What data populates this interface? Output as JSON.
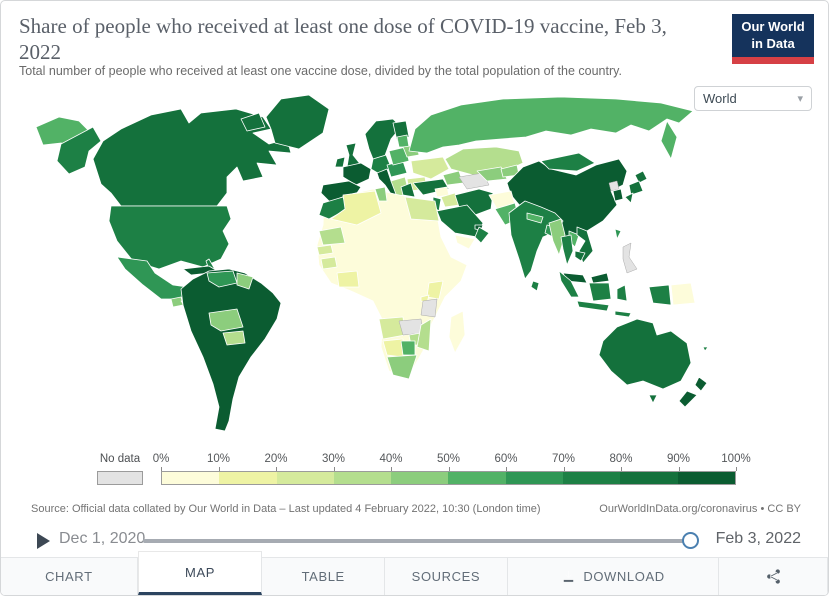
{
  "header": {
    "title": "Share of people who received at least one dose of COVID-19 vaccine, Feb 3, 2022",
    "subtitle": "Total number of people who received at least one vaccine dose, divided by the total population of the country.",
    "logo": {
      "line1": "Our World",
      "line2": "in Data",
      "bg_color": "#15335c",
      "accent_color": "#d64045"
    }
  },
  "controls": {
    "region_selector": {
      "value": "World"
    }
  },
  "map": {
    "type": "choropleth",
    "no_data": {
      "label": "No data",
      "color": "#e3e3e3"
    },
    "legend": {
      "tick_labels": [
        "0%",
        "10%",
        "20%",
        "30%",
        "40%",
        "50%",
        "60%",
        "70%",
        "80%",
        "90%",
        "100%"
      ],
      "bucket_colors": [
        "#fdfcda",
        "#eef3a4",
        "#d5ea9c",
        "#b4de8e",
        "#8ccd7d",
        "#52b266",
        "#2f9655",
        "#1d8045",
        "#14713c",
        "#0b5c31"
      ]
    },
    "regions": [
      {
        "id": "russia-west-wrap",
        "bucket": "50-60%",
        "color": "#52b266"
      },
      {
        "id": "alaska",
        "bucket": "70-80%",
        "color": "#1d8045"
      },
      {
        "id": "canada",
        "bucket": "80-90%",
        "color": "#14713c"
      },
      {
        "id": "usa",
        "bucket": "70-80%",
        "color": "#1d8045"
      },
      {
        "id": "greenland",
        "bucket": "80-90%",
        "color": "#14713c"
      },
      {
        "id": "mexico",
        "bucket": "60-70%",
        "color": "#2f9655"
      },
      {
        "id": "cuba",
        "bucket": "90-100%",
        "color": "#0b5c31"
      },
      {
        "id": "hispaniola",
        "bucket": "70-80%",
        "color": "#1d8045"
      },
      {
        "id": "caribbean-islands",
        "bucket": "90-100%",
        "color": "#0b5c31"
      },
      {
        "id": "guatemala",
        "bucket": "40-50%",
        "color": "#8ccd7d"
      },
      {
        "id": "central-america",
        "bucket": "60-70%",
        "color": "#2f9655"
      },
      {
        "id": "panama-costa-rica",
        "bucket": "70-80%",
        "color": "#1d8045"
      },
      {
        "id": "south-america",
        "bucket": "90-100%",
        "color": "#0b5c31"
      },
      {
        "id": "venezuela",
        "bucket": "60-70%",
        "color": "#2f9655"
      },
      {
        "id": "guyanas",
        "bucket": "40-50%",
        "color": "#8ccd7d"
      },
      {
        "id": "bolivia",
        "bucket": "40-50%",
        "color": "#8ccd7d"
      },
      {
        "id": "paraguay",
        "bucket": "30-40%",
        "color": "#b4de8e"
      },
      {
        "id": "iceland",
        "bucket": "60-70%",
        "color": "#2f9655"
      },
      {
        "id": "uk",
        "bucket": "80-90%",
        "color": "#14713c"
      },
      {
        "id": "ireland",
        "bucket": "80-90%",
        "color": "#14713c"
      },
      {
        "id": "scandinavia",
        "bucket": "80-90%",
        "color": "#14713c"
      },
      {
        "id": "finland",
        "bucket": "80-90%",
        "color": "#14713c"
      },
      {
        "id": "france",
        "bucket": "90-100%",
        "color": "#0b5c31"
      },
      {
        "id": "iberia",
        "bucket": "90-100%",
        "color": "#0b5c31"
      },
      {
        "id": "germany",
        "bucket": "70-80%",
        "color": "#1d8045"
      },
      {
        "id": "central-europe",
        "bucket": "60-70%",
        "color": "#2f9655"
      },
      {
        "id": "italy",
        "bucket": "90-100%",
        "color": "#0b5c31"
      },
      {
        "id": "poland",
        "bucket": "50-60%",
        "color": "#52b266"
      },
      {
        "id": "baltics",
        "bucket": "50-60%",
        "color": "#52b266"
      },
      {
        "id": "belarus",
        "bucket": "40-50%",
        "color": "#8ccd7d"
      },
      {
        "id": "ukraine",
        "bucket": "20-30%",
        "color": "#d5ea9c"
      },
      {
        "id": "romania-bulgaria",
        "bucket": "20-30%",
        "color": "#d5ea9c"
      },
      {
        "id": "balkans",
        "bucket": "30-40%",
        "color": "#b4de8e"
      },
      {
        "id": "greece",
        "bucket": "80-90%",
        "color": "#14713c"
      },
      {
        "id": "turkey",
        "bucket": "80-90%",
        "color": "#14713c"
      },
      {
        "id": "caucasus",
        "bucket": "40-50%",
        "color": "#8ccd7d"
      },
      {
        "id": "russia",
        "bucket": "50-60%",
        "color": "#52b266"
      },
      {
        "id": "kazakhstan",
        "bucket": "30-40%",
        "color": "#b4de8e"
      },
      {
        "id": "turkmenistan",
        "bucket": "no-data",
        "color": "#e3e3e3"
      },
      {
        "id": "uzbekistan",
        "bucket": "40-50%",
        "color": "#8ccd7d"
      },
      {
        "id": "kyrgyzstan-tajikistan",
        "bucket": "40-50%",
        "color": "#8ccd7d"
      },
      {
        "id": "china",
        "bucket": "90-100%",
        "color": "#0b5c31"
      },
      {
        "id": "mongolia",
        "bucket": "70-80%",
        "color": "#1d8045"
      },
      {
        "id": "north-korea",
        "bucket": "no-data",
        "color": "#e3e3e3"
      },
      {
        "id": "south-korea",
        "bucket": "90-100%",
        "color": "#0b5c31"
      },
      {
        "id": "japan",
        "bucket": "80-90%",
        "color": "#14713c"
      },
      {
        "id": "taiwan",
        "bucket": "60-70%",
        "color": "#2f9655"
      },
      {
        "id": "iran",
        "bucket": "80-90%",
        "color": "#14713c"
      },
      {
        "id": "iraq",
        "bucket": "20-30%",
        "color": "#d5ea9c"
      },
      {
        "id": "syria",
        "bucket": "0-10%",
        "color": "#fdfcda"
      },
      {
        "id": "israel-jordan",
        "bucket": "70-80%",
        "color": "#1d8045"
      },
      {
        "id": "saudi-arabia",
        "bucket": "80-90%",
        "color": "#14713c"
      },
      {
        "id": "yemen",
        "bucket": "0-10%",
        "color": "#fdfcda"
      },
      {
        "id": "oman",
        "bucket": "70-80%",
        "color": "#1d8045"
      },
      {
        "id": "uae-qatar",
        "bucket": "90-100%",
        "color": "#0b5c31"
      },
      {
        "id": "afghanistan",
        "bucket": "0-10%",
        "color": "#fdfcda"
      },
      {
        "id": "pakistan",
        "bucket": "50-60%",
        "color": "#52b266"
      },
      {
        "id": "india",
        "bucket": "70-80%",
        "color": "#1d8045"
      },
      {
        "id": "nepal",
        "bucket": "50-60%",
        "color": "#52b266"
      },
      {
        "id": "bangladesh",
        "bucket": "60-70%",
        "color": "#2f9655"
      },
      {
        "id": "sri-lanka",
        "bucket": "70-80%",
        "color": "#1d8045"
      },
      {
        "id": "myanmar",
        "bucket": "40-50%",
        "color": "#8ccd7d"
      },
      {
        "id": "thailand",
        "bucket": "70-80%",
        "color": "#1d8045"
      },
      {
        "id": "laos",
        "bucket": "50-60%",
        "color": "#52b266"
      },
      {
        "id": "vietnam",
        "bucket": "80-90%",
        "color": "#14713c"
      },
      {
        "id": "cambodia",
        "bucket": "80-90%",
        "color": "#14713c"
      },
      {
        "id": "malaysia",
        "bucket": "90-100%",
        "color": "#0b5c31"
      },
      {
        "id": "philippines",
        "bucket": "no-data",
        "color": "#e3e3e3"
      },
      {
        "id": "indonesia",
        "bucket": "70-80%",
        "color": "#1d8045"
      },
      {
        "id": "papua-new-guinea",
        "bucket": "0-10%",
        "color": "#fdfcda"
      },
      {
        "id": "australia",
        "bucket": "80-90%",
        "color": "#14713c"
      },
      {
        "id": "new-zealand",
        "bucket": "90-100%",
        "color": "#0b5c31"
      },
      {
        "id": "pacific-islands",
        "bucket": "70-80%",
        "color": "#1d8045"
      },
      {
        "id": "central-africa",
        "bucket": "0-10%",
        "color": "#fdfcda"
      },
      {
        "id": "morocco",
        "bucket": "70-80%",
        "color": "#1d8045"
      },
      {
        "id": "algeria",
        "bucket": "10-20%",
        "color": "#eef3a4"
      },
      {
        "id": "tunisia",
        "bucket": "40-50%",
        "color": "#8ccd7d"
      },
      {
        "id": "egypt",
        "bucket": "20-30%",
        "color": "#d5ea9c"
      },
      {
        "id": "mauritania",
        "bucket": "30-40%",
        "color": "#b4de8e"
      },
      {
        "id": "senegal",
        "bucket": "20-30%",
        "color": "#d5ea9c"
      },
      {
        "id": "guinea",
        "bucket": "20-30%",
        "color": "#d5ea9c"
      },
      {
        "id": "ghana-ivory-coast",
        "bucket": "10-20%",
        "color": "#eef3a4"
      },
      {
        "id": "angola",
        "bucket": "20-30%",
        "color": "#d5ea9c"
      },
      {
        "id": "namibia",
        "bucket": "10-20%",
        "color": "#eef3a4"
      },
      {
        "id": "botswana",
        "bucket": "50-60%",
        "color": "#52b266"
      },
      {
        "id": "south-africa",
        "bucket": "40-50%",
        "color": "#8ccd7d"
      },
      {
        "id": "zimbabwe",
        "bucket": "30-40%",
        "color": "#b4de8e"
      },
      {
        "id": "mozambique",
        "bucket": "30-40%",
        "color": "#b4de8e"
      },
      {
        "id": "zambia",
        "bucket": "no-data",
        "color": "#e3e3e3"
      },
      {
        "id": "tanzania",
        "bucket": "no-data",
        "color": "#e3e3e3"
      },
      {
        "id": "kenya",
        "bucket": "10-20%",
        "color": "#eef3a4"
      },
      {
        "id": "uganda",
        "bucket": "10-20%",
        "color": "#eef3a4"
      },
      {
        "id": "rwanda",
        "bucket": "60-70%",
        "color": "#2f9655"
      },
      {
        "id": "madagascar",
        "bucket": "0-10%",
        "color": "#fdfcda"
      }
    ]
  },
  "footer": {
    "source_left": "Source: Official data collated by Our World in Data – Last updated 4 February 2022, 10:30 (London time)",
    "source_right": "OurWorldInData.org/coronavirus • CC BY",
    "timeline": {
      "start_label": "Dec 1, 2020",
      "end_label": "Feb 3, 2022",
      "progress": 1
    },
    "tabs": [
      {
        "label": "CHART",
        "active": false
      },
      {
        "label": "MAP",
        "active": true
      },
      {
        "label": "TABLE",
        "active": false
      },
      {
        "label": "SOURCES",
        "active": false
      },
      {
        "label": "DOWNLOAD",
        "active": false,
        "icon": "download-icon"
      },
      {
        "label": "",
        "active": false,
        "icon": "share-icon"
      }
    ]
  }
}
